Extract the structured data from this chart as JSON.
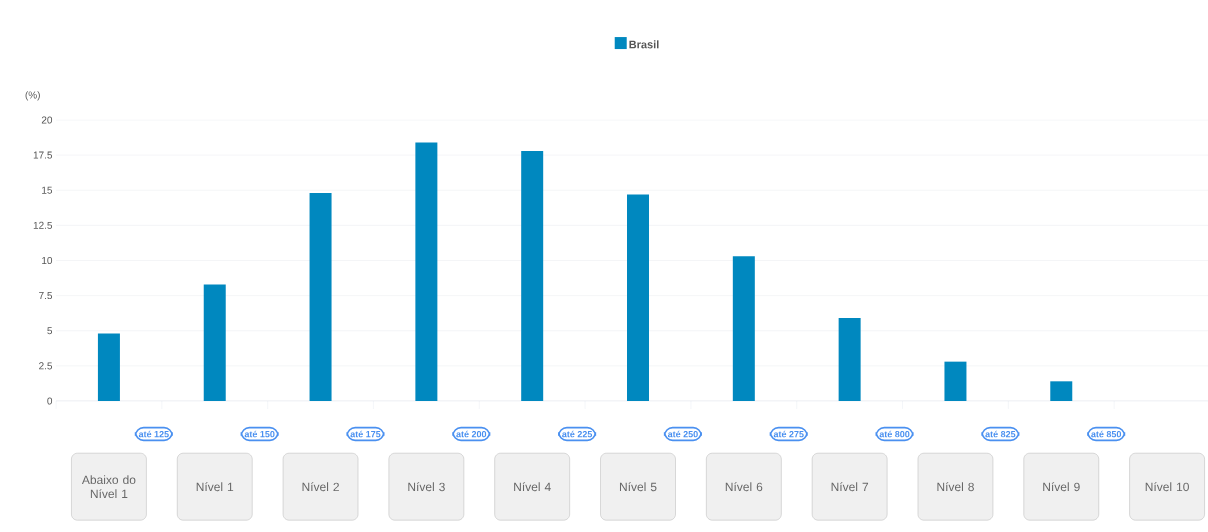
{
  "chart_data": {
    "type": "bar",
    "categories": [
      "Abaixo do Nível 1",
      "Nível 1",
      "Nível 2",
      "Nível 3",
      "Nível 4",
      "Nível 5",
      "Nível 6",
      "Nível 7",
      "Nível 8",
      "Nível 9",
      "Nível 10"
    ],
    "series": [
      {
        "name": "Brasil",
        "color": "#0088bf",
        "values": [
          4.8,
          8.3,
          14.8,
          18.4,
          17.8,
          14.7,
          10.3,
          5.9,
          2.8,
          1.4,
          null
        ]
      }
    ],
    "ylabel": "(%)",
    "ylim": [
      0,
      20
    ],
    "yticks": [
      0,
      2.5,
      5,
      7.5,
      10,
      12.5,
      15,
      17.5,
      20
    ],
    "grid": "y",
    "legend": "top",
    "annotations": [
      "até 125",
      "até 150",
      "até 175",
      "até 200",
      "até 225",
      "até 250",
      "até 275",
      "até 800",
      "até 825",
      "até 850"
    ]
  }
}
